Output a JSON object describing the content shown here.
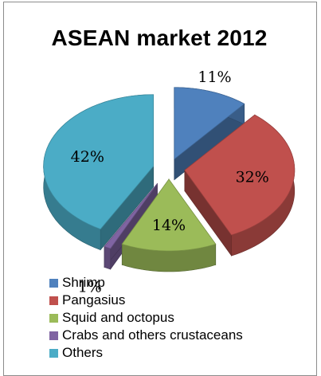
{
  "chart_data": {
    "type": "pie",
    "style": "3d-exploded",
    "title": "ASEAN market 2012",
    "categories": [
      "Shrimp",
      "Pangasius",
      "Squid and octopus",
      "Crabs and others crustaceans",
      "Others"
    ],
    "values": [
      11,
      32,
      14,
      1,
      42
    ],
    "data_labels": [
      "11%",
      "32%",
      "14%",
      "1%",
      "42%"
    ],
    "colors": [
      "#4f81bd",
      "#c0504d",
      "#9bbb59",
      "#8064a2",
      "#4bacc6"
    ],
    "legend_position": "bottom",
    "start_direction": "top",
    "direction": "clockwise"
  }
}
